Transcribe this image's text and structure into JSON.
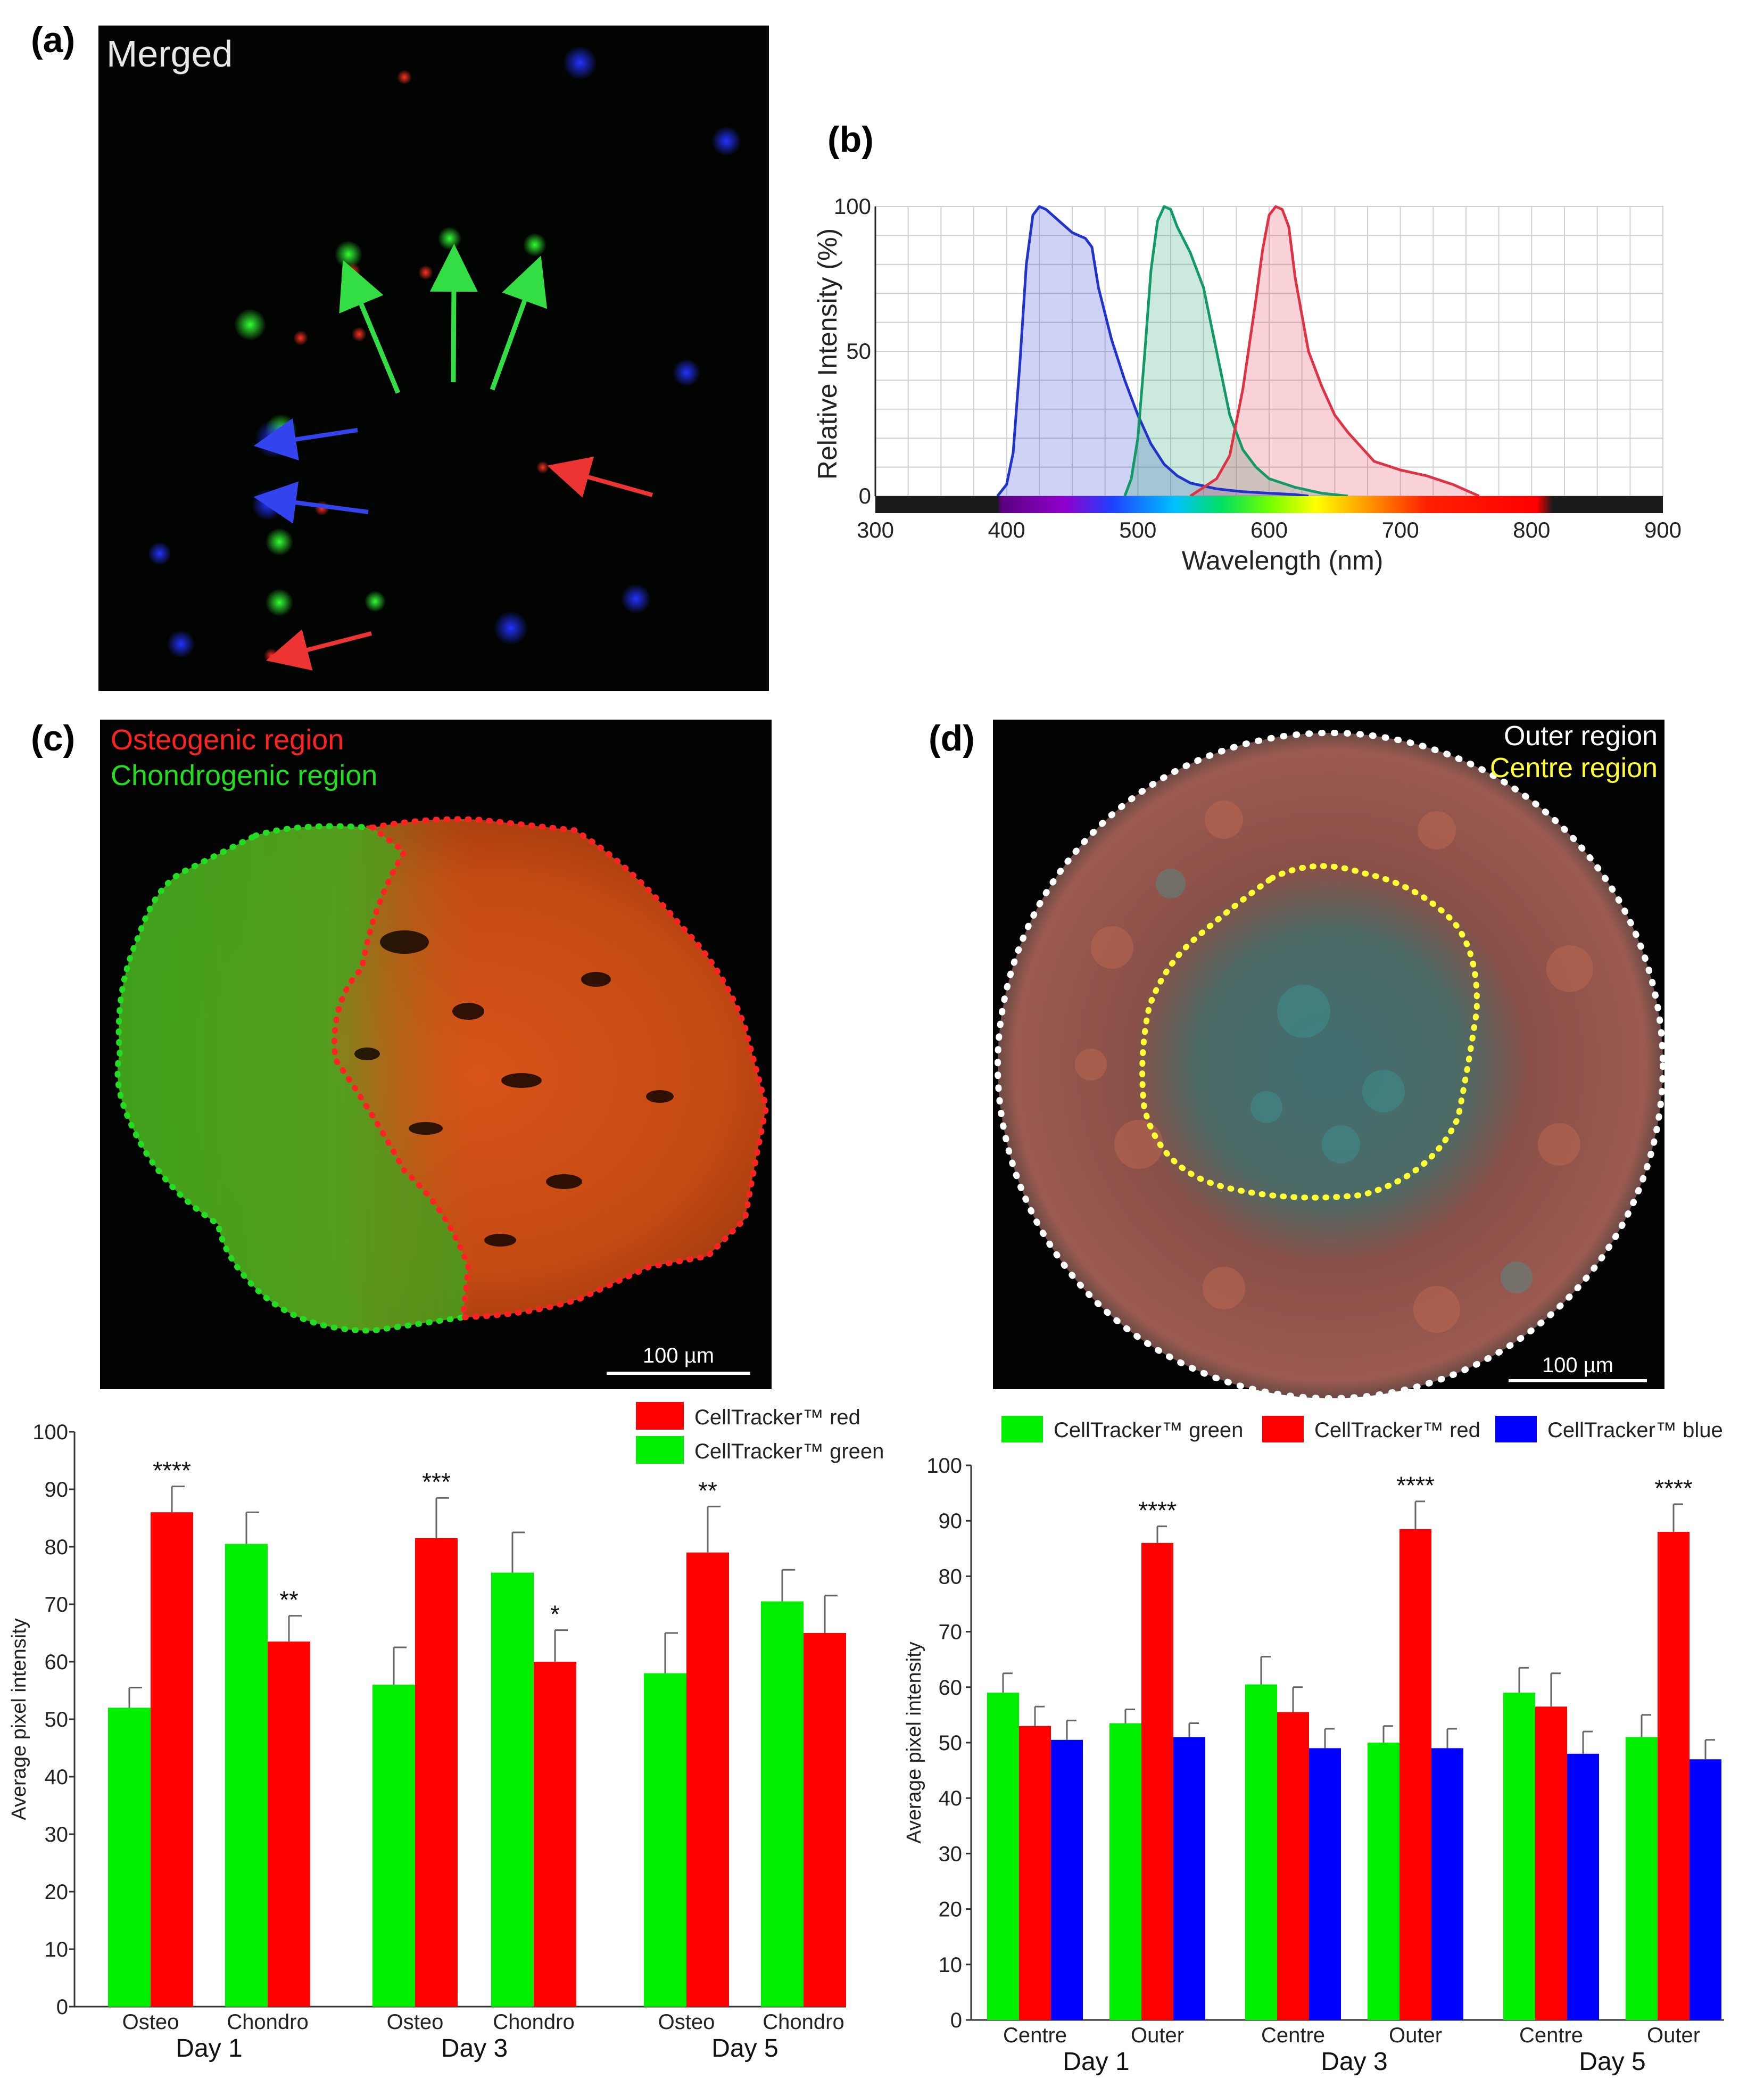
{
  "panels": {
    "a": {
      "label": "(a)",
      "title": "Merged"
    },
    "b": {
      "label": "(b)"
    },
    "c": {
      "label": "(c)",
      "legend": [
        "Osteogenic region",
        "Chondrogenic region"
      ],
      "scalebar": "100 µm"
    },
    "d": {
      "label": "(d)",
      "legend": [
        "Outer region",
        "Centre region"
      ],
      "scalebar": "100 µm"
    }
  },
  "colors": {
    "green": "#00ee00",
    "red": "#ff0000",
    "blue": "#0000ff",
    "spec_blue": "#2233cc",
    "spec_green": "#119966",
    "spec_red": "#dd3344",
    "legend_c_red": "#ff2222",
    "legend_c_green": "#22dd22",
    "legend_d_yellow": "#ffff33"
  },
  "chart_data": [
    {
      "id": "spectrum",
      "type": "line",
      "title": "",
      "xlabel": "Wavelength (nm)",
      "ylabel": "Relative Intensity (%)",
      "xlim": [
        300,
        900
      ],
      "ylim": [
        0,
        100
      ],
      "xticks": [
        300,
        400,
        500,
        600,
        700,
        800,
        900
      ],
      "yticks": [
        0,
        50,
        100
      ],
      "series": [
        {
          "name": "blue",
          "color": "#2233cc",
          "x": [
            393,
            400,
            405,
            410,
            415,
            420,
            425,
            430,
            440,
            450,
            455,
            460,
            465,
            470,
            480,
            490,
            500,
            510,
            520,
            530,
            540,
            560,
            580,
            600,
            620,
            630
          ],
          "y": [
            0,
            4,
            15,
            45,
            80,
            97,
            100,
            99,
            95,
            91,
            90,
            89,
            86,
            72,
            54,
            40,
            28,
            18,
            11,
            7,
            4.5,
            2.5,
            1.5,
            1,
            0.5,
            0
          ]
        },
        {
          "name": "green",
          "color": "#119966",
          "x": [
            490,
            495,
            500,
            505,
            510,
            515,
            520,
            525,
            530,
            540,
            550,
            560,
            570,
            580,
            590,
            600,
            620,
            640,
            660
          ],
          "y": [
            0,
            6,
            20,
            48,
            78,
            95,
            100,
            99,
            93,
            84,
            72,
            50,
            28,
            16,
            10,
            6,
            3,
            1,
            0
          ]
        },
        {
          "name": "red",
          "color": "#dd3344",
          "x": [
            540,
            550,
            560,
            570,
            580,
            590,
            595,
            600,
            605,
            610,
            615,
            620,
            630,
            640,
            650,
            660,
            670,
            680,
            700,
            720,
            740,
            760
          ],
          "y": [
            0,
            3,
            6,
            14,
            37,
            68,
            85,
            97,
            100,
            99,
            93,
            75,
            50,
            38,
            28,
            22,
            17,
            12,
            9,
            7,
            4,
            0
          ]
        }
      ],
      "colorbar_range_nm": [
        395,
        820
      ]
    },
    {
      "id": "bar_c",
      "type": "bar",
      "ylabel": "Average pixel intensity",
      "ylim": [
        0,
        100
      ],
      "yticks": [
        0,
        10,
        20,
        30,
        40,
        50,
        60,
        70,
        80,
        90,
        100
      ],
      "groups": [
        "Day 1",
        "Day 3",
        "Day 5"
      ],
      "categories": [
        "Osteo",
        "Chondro",
        "Osteo",
        "Chondro",
        "Osteo",
        "Chondro"
      ],
      "series": [
        {
          "name": "CellTracker™ green",
          "color": "#00ee00",
          "values": [
            52,
            80.5,
            56,
            75.5,
            58,
            70.5
          ],
          "errors": [
            3.5,
            5.5,
            6.5,
            7,
            7,
            5.5
          ]
        },
        {
          "name": "CellTracker™ red",
          "color": "#ff0000",
          "values": [
            86,
            63.5,
            81.5,
            60,
            79,
            65
          ],
          "errors": [
            4.5,
            4.5,
            7,
            5.5,
            8,
            6.5
          ]
        }
      ],
      "legend": [
        "CellTracker™ red",
        "CellTracker™ green"
      ],
      "annotations": [
        "****",
        "**",
        "***",
        "*",
        "**",
        ""
      ]
    },
    {
      "id": "bar_d",
      "type": "bar",
      "ylabel": "Average pixel intensity",
      "ylim": [
        0,
        100
      ],
      "yticks": [
        0,
        10,
        20,
        30,
        40,
        50,
        60,
        70,
        80,
        90,
        100
      ],
      "groups": [
        "Day 1",
        "Day 3",
        "Day 5"
      ],
      "categories": [
        "Centre",
        "Outer",
        "Centre",
        "Outer",
        "Centre",
        "Outer"
      ],
      "series": [
        {
          "name": "CellTracker™ green",
          "color": "#00ee00",
          "values": [
            59,
            53.5,
            60.5,
            50,
            59,
            51
          ],
          "errors": [
            3.5,
            2.5,
            5,
            3,
            4.5,
            4
          ]
        },
        {
          "name": "CellTracker™ red",
          "color": "#ff0000",
          "values": [
            53,
            86,
            55.5,
            88.5,
            56.5,
            88
          ],
          "errors": [
            3.5,
            3,
            4.5,
            5,
            6,
            5
          ]
        },
        {
          "name": "CellTracker™ blue",
          "color": "#0000ff",
          "values": [
            50.5,
            51,
            49,
            49,
            48,
            47
          ],
          "errors": [
            3.5,
            2.5,
            3.5,
            3.5,
            4,
            3.5
          ]
        }
      ],
      "legend": [
        "CellTracker™ green",
        "CellTracker™ red",
        "CellTracker™ blue"
      ],
      "annotations": [
        "",
        "****",
        "",
        "****",
        "",
        "****"
      ]
    }
  ]
}
